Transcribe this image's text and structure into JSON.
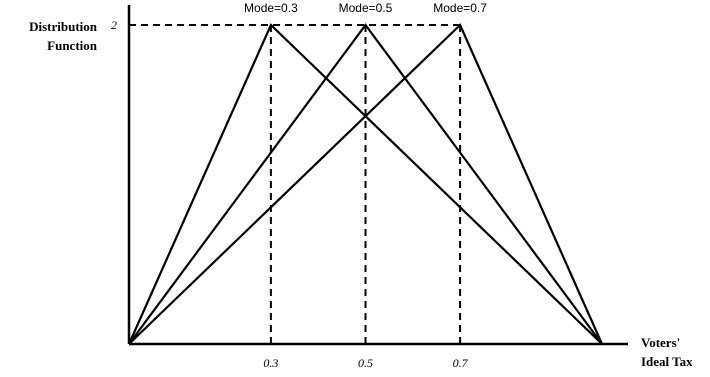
{
  "chart_data": {
    "type": "line",
    "title": "",
    "ylabel": [
      "Distribution",
      "Function"
    ],
    "xlabel": [
      "Voters'",
      "Ideal Tax"
    ],
    "xlim": [
      0,
      1
    ],
    "ylim": [
      0,
      2
    ],
    "x_ticks": [
      {
        "value": 0.3,
        "label": "0.3"
      },
      {
        "value": 0.5,
        "label": "0.5"
      },
      {
        "value": 0.7,
        "label": "0.7"
      }
    ],
    "y_ticks": [
      {
        "value": 2,
        "label": "2"
      }
    ],
    "series": [
      {
        "name": "Mode=0.3",
        "x": [
          0,
          0.3,
          1
        ],
        "y": [
          0,
          2,
          0
        ]
      },
      {
        "name": "Mode=0.5",
        "x": [
          0,
          0.5,
          1
        ],
        "y": [
          0,
          2,
          0
        ]
      },
      {
        "name": "Mode=0.7",
        "x": [
          0,
          0.7,
          1
        ],
        "y": [
          0,
          2,
          0
        ]
      }
    ],
    "grid": false,
    "line_color": "#000000"
  }
}
